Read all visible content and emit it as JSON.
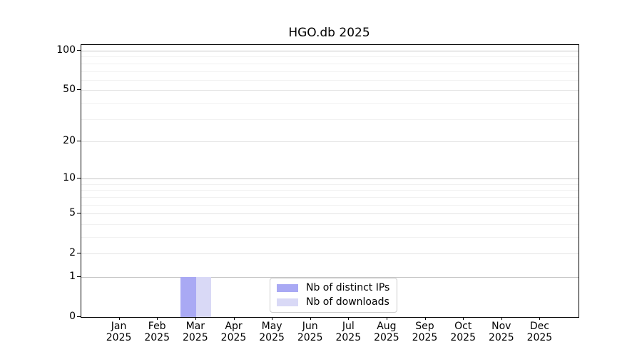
{
  "chart_data": {
    "type": "bar",
    "title": "HGO.db 2025",
    "categories": [
      "Jan 2025",
      "Feb 2025",
      "Mar 2025",
      "Apr 2025",
      "May 2025",
      "Jun 2025",
      "Jul 2025",
      "Aug 2025",
      "Sep 2025",
      "Oct 2025",
      "Nov 2025",
      "Dec 2025"
    ],
    "series": [
      {
        "name": "Nb of distinct IPs",
        "color": "#a9a9f4",
        "values": [
          0,
          0,
          1,
          0,
          0,
          0,
          0,
          0,
          0,
          0,
          0,
          0
        ]
      },
      {
        "name": "Nb of downloads",
        "color": "#d9d9f6",
        "values": [
          0,
          0,
          1,
          0,
          0,
          0,
          0,
          0,
          0,
          0,
          0,
          0
        ]
      }
    ],
    "xlabel": "",
    "ylabel": "",
    "yscale": "log1p",
    "ylim": [
      0,
      112
    ],
    "y_ticks": [
      0,
      1,
      2,
      5,
      10,
      20,
      50,
      100
    ],
    "y_minor_gridlines": [
      3,
      4,
      6,
      7,
      8,
      9,
      30,
      40,
      60,
      70,
      80,
      90
    ],
    "grid": true,
    "legend_position": "lower center"
  },
  "colors": {
    "axis": "#000000",
    "grid_major": "#c6c6c6",
    "grid_mid": "#e3e3e3",
    "grid_minor": "#f1f1f1",
    "legend_border": "#cccccc",
    "background": "#ffffff"
  }
}
